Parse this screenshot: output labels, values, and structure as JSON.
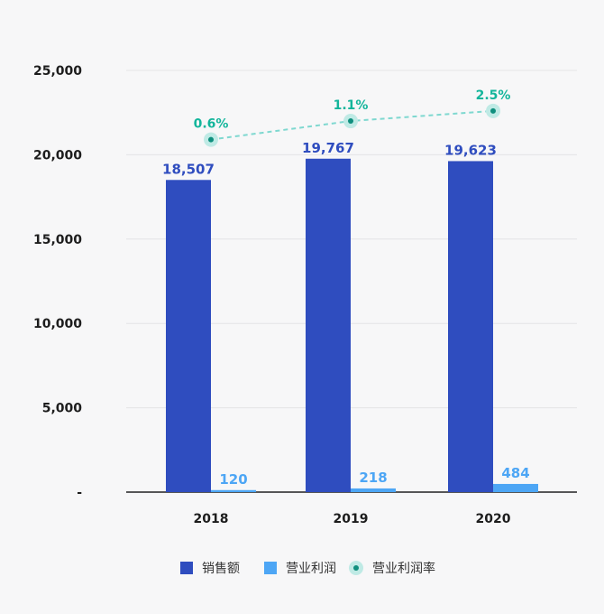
{
  "chart_data": {
    "type": "bar",
    "categories": [
      "2018",
      "2019",
      "2020"
    ],
    "y_ticks": [
      "-",
      "5,000",
      "10,000",
      "15,000",
      "20,000",
      "25,000"
    ],
    "ylim": [
      0,
      25000
    ],
    "grid": true,
    "legend_position": "bottom",
    "series": [
      {
        "name": "销售额",
        "type": "bar",
        "color": "#2f4dbf",
        "values": [
          18507,
          19767,
          19623
        ],
        "labels": [
          "18,507",
          "19,767",
          "19,623"
        ]
      },
      {
        "name": "营业利润",
        "type": "bar",
        "color": "#4da6f5",
        "values": [
          120,
          218,
          484
        ],
        "labels": [
          "120",
          "218",
          "484"
        ]
      },
      {
        "name": "营业利润率",
        "type": "line",
        "color": "#13b59b",
        "values": [
          0.6,
          1.1,
          2.5
        ],
        "labels": [
          "0.6%",
          "1.1%",
          "2.5%"
        ],
        "plotted_at": [
          20900,
          22000,
          22600
        ]
      }
    ]
  }
}
